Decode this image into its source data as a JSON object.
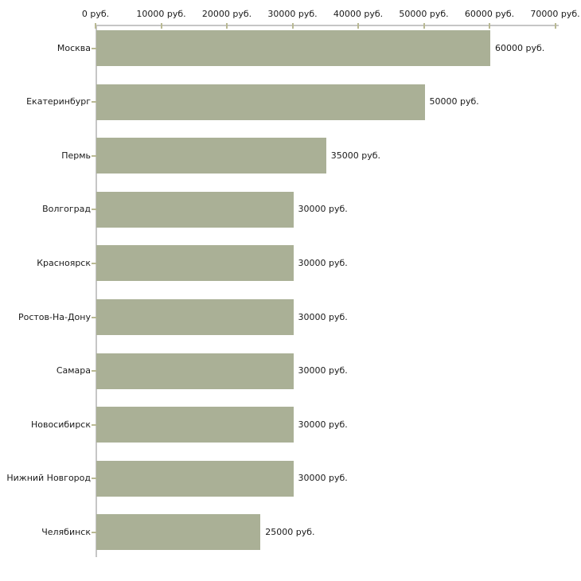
{
  "chart_data": {
    "type": "bar",
    "orientation": "horizontal",
    "title": "",
    "xlabel": "",
    "ylabel": "",
    "categories": [
      "Москва",
      "Екатеринбург",
      "Пермь",
      "Волгоград",
      "Красноярск",
      "Ростов-На-Дону",
      "Самара",
      "Новосибирск",
      "Нижний Новгород",
      "Челябинск"
    ],
    "values": [
      60000,
      50000,
      35000,
      30000,
      30000,
      30000,
      30000,
      30000,
      30000,
      25000
    ],
    "value_labels": [
      "60000 руб.",
      "50000 руб.",
      "35000 руб.",
      "30000 руб.",
      "30000 руб.",
      "30000 руб.",
      "30000 руб.",
      "30000 руб.",
      "30000 руб.",
      "25000 руб."
    ],
    "unit_suffix": " руб.",
    "x_axis": {
      "position": "top",
      "range": [
        0,
        70000
      ],
      "ticks": [
        0,
        10000,
        20000,
        30000,
        40000,
        50000,
        60000,
        70000
      ],
      "tick_labels": [
        "0 руб.",
        "10000 руб.",
        "20000 руб.",
        "30000 руб.",
        "40000 руб.",
        "50000 руб.",
        "60000 руб.",
        "70000 руб."
      ]
    },
    "grid": false,
    "legend": false,
    "colors": {
      "bar": "#aab096",
      "axis_line": "#c6c6c6",
      "tick": "#b9b993",
      "text": "#1a1a1a",
      "background": "#ffffff"
    }
  }
}
